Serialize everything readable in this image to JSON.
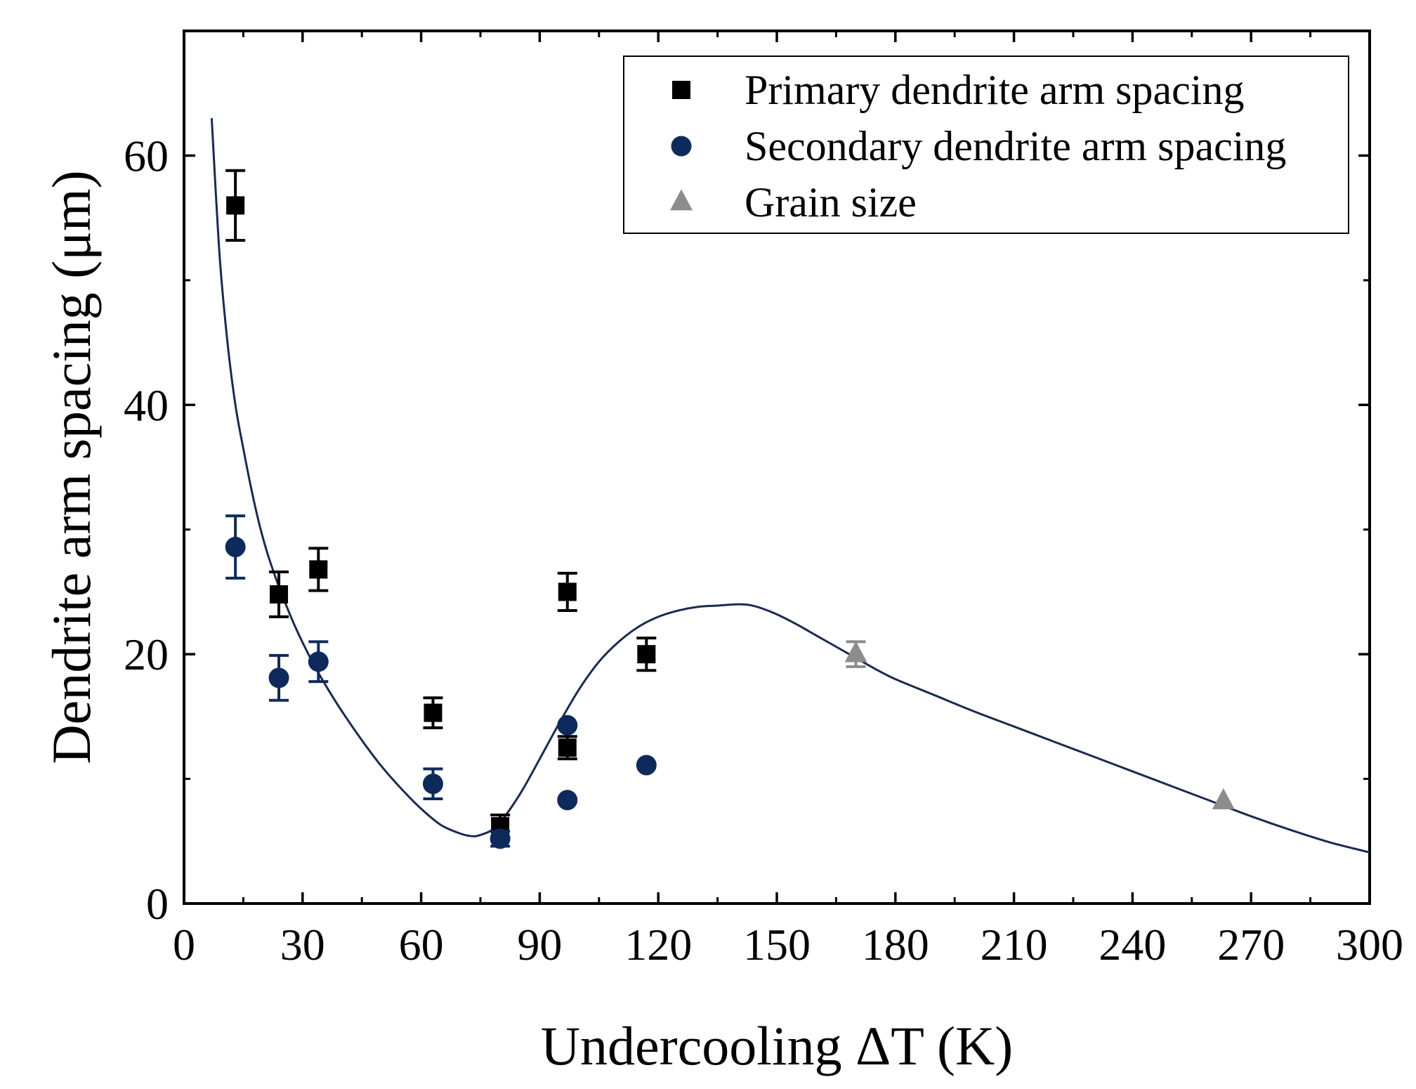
{
  "chart_data": {
    "type": "scatter",
    "xlabel": "Undercooling ΔT (K)",
    "ylabel": "Dendrite arm spacing (μm)",
    "xlim": [
      0,
      300
    ],
    "ylim": [
      0,
      70
    ],
    "xticks": [
      0,
      30,
      60,
      90,
      120,
      150,
      180,
      210,
      240,
      270,
      300
    ],
    "yticks": [
      0,
      20,
      40,
      60
    ],
    "xtick_labels": [
      "0",
      "30",
      "60",
      "90",
      "120",
      "150",
      "180",
      "210",
      "240",
      "270",
      "300"
    ],
    "ytick_labels": [
      "0",
      "20",
      "40",
      "60"
    ],
    "legend_position": "top-right",
    "series": [
      {
        "name": "Primary dendrite arm spacing",
        "marker": "square",
        "color": "#000000",
        "points": [
          {
            "x": 13,
            "y": 56.0,
            "err": 2.8
          },
          {
            "x": 24,
            "y": 24.8,
            "err": 1.8
          },
          {
            "x": 34,
            "y": 26.8,
            "err": 1.7
          },
          {
            "x": 63,
            "y": 15.3,
            "err": 1.2
          },
          {
            "x": 80,
            "y": 6.2,
            "err": 0.9
          },
          {
            "x": 97,
            "y": 25.0,
            "err": 1.5
          },
          {
            "x": 97,
            "y": 12.5,
            "err": 0.9
          },
          {
            "x": 117,
            "y": 20.0,
            "err": 1.3
          }
        ]
      },
      {
        "name": "Secondary dendrite arm spacing",
        "marker": "circle",
        "color": "#0e2a5c",
        "points": [
          {
            "x": 13,
            "y": 28.6,
            "err": 2.5
          },
          {
            "x": 24,
            "y": 18.1,
            "err": 1.8
          },
          {
            "x": 34,
            "y": 19.4,
            "err": 1.6
          },
          {
            "x": 63,
            "y": 9.6,
            "err": 1.2
          },
          {
            "x": 80,
            "y": 5.2,
            "err": 0.6
          },
          {
            "x": 97,
            "y": 14.3,
            "err": 0
          },
          {
            "x": 97,
            "y": 8.3,
            "err": 0
          },
          {
            "x": 117,
            "y": 11.1,
            "err": 0
          }
        ]
      },
      {
        "name": "Grain size",
        "marker": "triangle",
        "color": "#8c8c8c",
        "points": [
          {
            "x": 170,
            "y": 20.0,
            "err": 1.0
          },
          {
            "x": 263,
            "y": 8.2,
            "err": 0
          }
        ]
      }
    ],
    "fit_curve": {
      "color": "#1a2a50",
      "x": [
        7,
        9,
        11,
        13,
        15,
        17,
        19,
        21,
        23,
        25,
        28,
        31,
        34,
        37,
        40,
        45,
        50,
        55,
        60,
        65,
        70,
        73,
        75,
        78,
        80,
        83,
        86,
        90,
        95,
        100,
        105,
        110,
        115,
        120,
        125,
        130,
        135,
        140,
        143,
        146,
        150,
        155,
        160,
        165,
        170,
        175,
        180,
        190,
        200,
        210,
        220,
        230,
        240,
        250,
        260,
        270,
        280,
        290,
        300
      ],
      "y": [
        63,
        52,
        45,
        40,
        36.5,
        33.3,
        30.5,
        28.2,
        26.3,
        24.6,
        22.3,
        20.3,
        18.5,
        16.9,
        15.4,
        13.1,
        11.0,
        9.2,
        7.6,
        6.3,
        5.6,
        5.4,
        5.5,
        5.9,
        6.5,
        7.8,
        9.3,
        11.6,
        14.5,
        17.2,
        19.4,
        21.0,
        22.2,
        23.0,
        23.5,
        23.8,
        23.9,
        24.0,
        23.95,
        23.7,
        23.2,
        22.4,
        21.5,
        20.6,
        19.7,
        18.8,
        18.0,
        16.7,
        15.4,
        14.2,
        13.0,
        11.8,
        10.6,
        9.4,
        8.2,
        7.0,
        5.9,
        4.9,
        4.1
      ]
    }
  }
}
